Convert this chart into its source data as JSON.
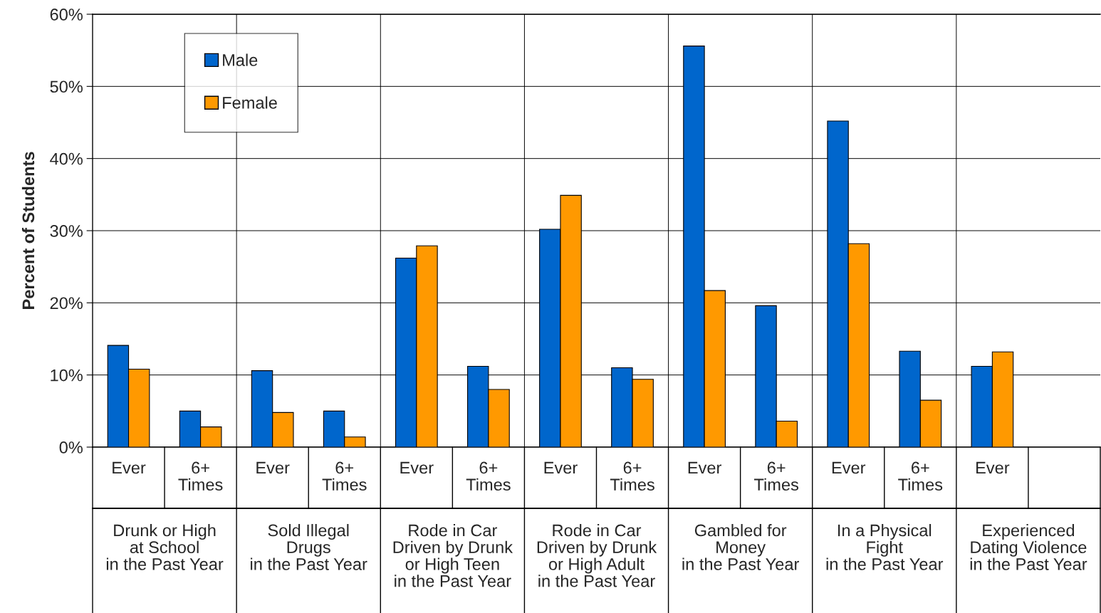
{
  "chart_data": {
    "type": "bar",
    "ylabel": "Percent of Students",
    "categories": [
      "Ever",
      "6+\nTimes",
      "Ever",
      "6+\nTimes",
      "Ever",
      "6+\nTimes",
      "Ever",
      "6+\nTimes",
      "Ever",
      "6+\nTimes",
      "Ever",
      "6+\nTimes",
      "Ever",
      null
    ],
    "series": [
      {
        "name": "Male",
        "color": "#0066cc",
        "values": [
          14.1,
          5.0,
          10.6,
          5.0,
          26.2,
          11.2,
          30.2,
          11.0,
          55.6,
          19.6,
          45.2,
          13.3,
          11.2,
          null
        ]
      },
      {
        "name": "Female",
        "color": "#ff9900",
        "values": [
          10.8,
          2.8,
          4.8,
          1.4,
          27.9,
          8.0,
          34.9,
          9.4,
          21.7,
          3.6,
          28.2,
          6.5,
          13.2,
          null
        ]
      }
    ],
    "annotations": [
      "Drunk or High\nat School\nin the Past Year",
      "Sold Illegal\nDrugs\nin the Past Year",
      "Rode in Car\nDriven by Drunk\nor High Teen\nin the Past Year",
      "Rode in Car\nDriven by Drunk\nor High Adult\nin the Past Year",
      "Gambled for\nMoney\nin the Past Year",
      "In a Physical\nFight\nin the Past Year",
      "Experienced\nDating Violence\nin the Past Year"
    ],
    "ylim": [
      0,
      60
    ],
    "yticks": [
      {
        "value": 0,
        "label": "0%"
      },
      {
        "value": 10,
        "label": "10%"
      },
      {
        "value": 20,
        "label": "20%"
      },
      {
        "value": 30,
        "label": "30%"
      },
      {
        "value": 40,
        "label": "40%"
      },
      {
        "value": 50,
        "label": "50%"
      },
      {
        "value": 60,
        "label": "60%"
      }
    ],
    "grid": true,
    "legend": "top left"
  }
}
